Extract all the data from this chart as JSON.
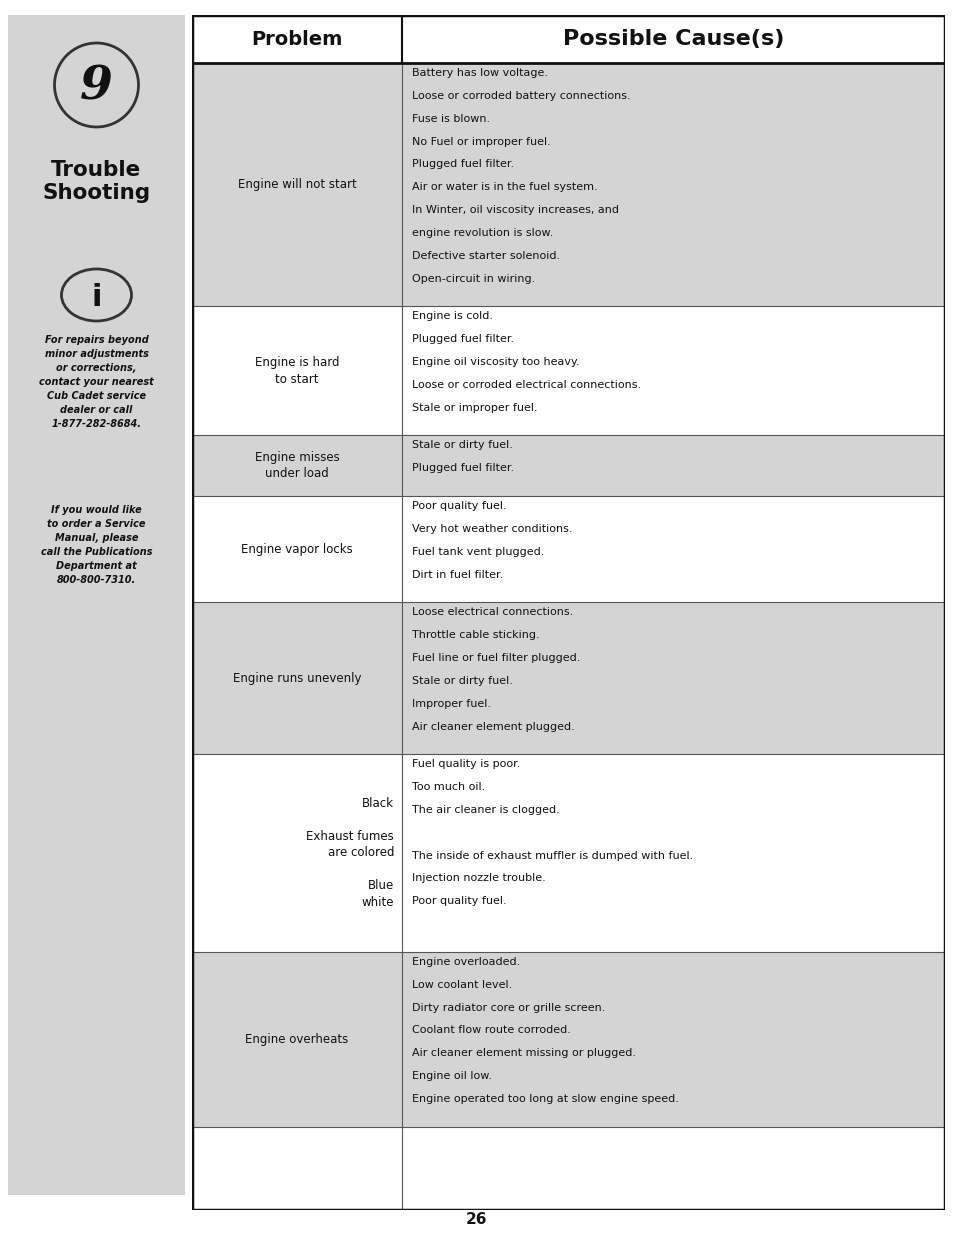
{
  "page_number": "26",
  "sidebar": {
    "background_color": "#d4d4d4",
    "number": "9",
    "title_line1": "Trouble",
    "title_line2": "Shooting",
    "info_text_1": "For repairs beyond\nminor adjustments\nor corrections,\ncontact your nearest\nCub Cadet service\ndealer or call\n1-877-282-8684.",
    "info_text_2": "If you would like\nto order a Service\nManual, please\ncall the Publications\nDepartment at\n800-800-7310."
  },
  "table": {
    "header_problem": "Problem",
    "header_cause": "Possible Cause(s)",
    "rows": [
      {
        "problem": "Engine will not start",
        "causes": [
          "Battery has low voltage.",
          "Loose or corroded battery connections.",
          "Fuse is blown.",
          "No Fuel or improper fuel.",
          "Plugged fuel filter.",
          "Air or water is in the fuel system.",
          "In Winter, oil viscosity increases, and",
          "engine revolution is slow.",
          "Defective starter solenoid.",
          "Open-circuit in wiring."
        ],
        "bg": "#d4d4d4",
        "problem_align": "center",
        "extra_lines": 0
      },
      {
        "problem": "Engine is hard\nto start",
        "causes": [
          "Engine is cold.",
          "Plugged fuel filter.",
          "Engine oil viscosity too heavy.",
          "Loose or corroded electrical connections.",
          "Stale or improper fuel."
        ],
        "bg": "#ffffff",
        "problem_align": "center",
        "extra_lines": 0
      },
      {
        "problem": "Engine misses\nunder load",
        "causes": [
          "Stale or dirty fuel.",
          "Plugged fuel filter."
        ],
        "bg": "#d4d4d4",
        "problem_align": "center",
        "extra_lines": 0
      },
      {
        "problem": "Engine vapor locks",
        "causes": [
          "Poor quality fuel.",
          "Very hot weather conditions.",
          "Fuel tank vent plugged.",
          "Dirt in fuel filter."
        ],
        "bg": "#ffffff",
        "problem_align": "center",
        "extra_lines": 0
      },
      {
        "problem": "Engine runs unevenly",
        "causes": [
          "Loose electrical connections.",
          "Throttle cable sticking.",
          "Fuel line or fuel filter plugged.",
          "Stale or dirty fuel.",
          "Improper fuel.",
          "Air cleaner element plugged."
        ],
        "bg": "#d4d4d4",
        "problem_align": "center",
        "extra_lines": 0
      },
      {
        "problem": "Black\n\nExhaust fumes\nare colored\n\nBlue\nwhite",
        "causes": [
          "Fuel quality is poor.",
          "Too much oil.",
          "The air cleaner is clogged.",
          "",
          "The inside of exhaust muffler is dumped with fuel.",
          "Injection nozzle trouble.",
          "Poor quality fuel."
        ],
        "bg": "#ffffff",
        "problem_align": "right",
        "extra_lines": 1
      },
      {
        "problem": "Engine overheats",
        "causes": [
          "Engine overloaded.",
          "Low coolant level.",
          "Dirty radiator core or grille screen.",
          "Coolant flow route corroded.",
          "Air cleaner element missing or plugged.",
          "Engine oil low.",
          "Engine operated too long at slow engine speed."
        ],
        "bg": "#d4d4d4",
        "problem_align": "center",
        "extra_lines": 0
      },
      {
        "problem": "",
        "causes": [],
        "bg": "#ffffff",
        "problem_align": "center",
        "extra_lines": 0
      }
    ]
  }
}
